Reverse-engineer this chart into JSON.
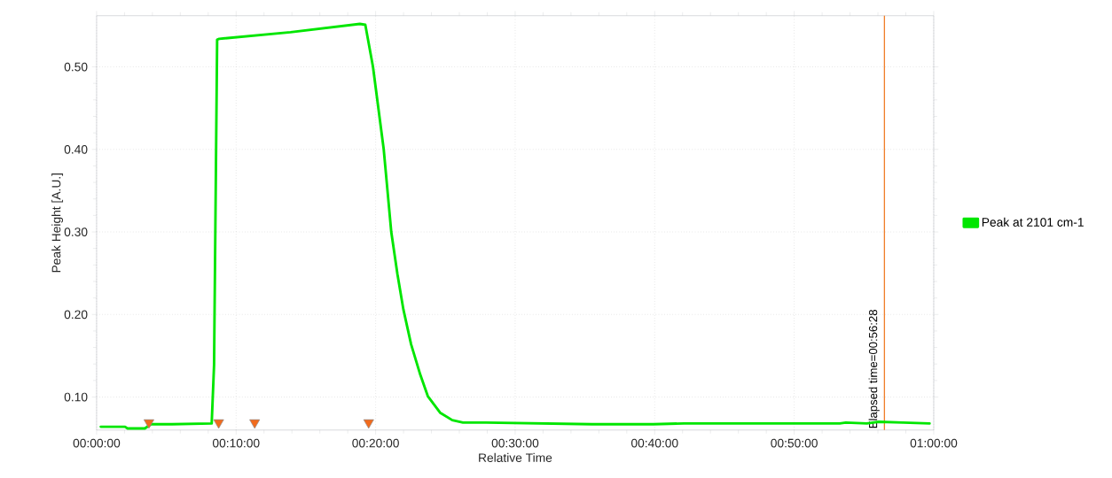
{
  "chart_data": {
    "type": "line",
    "xlabel": "Relative Time",
    "ylabel": "Peak Height [A.U.]",
    "xlim": [
      0,
      60
    ],
    "ylim": [
      0.06,
      0.562
    ],
    "xticks": [
      {
        "value": 0,
        "label": "00:00:00"
      },
      {
        "value": 10,
        "label": "00:10:00"
      },
      {
        "value": 20,
        "label": "00:20:00"
      },
      {
        "value": 30,
        "label": "00:30:00"
      },
      {
        "value": 40,
        "label": "00:40:00"
      },
      {
        "value": 50,
        "label": "00:50:00"
      },
      {
        "value": 60,
        "label": "01:00:00"
      }
    ],
    "yticks": [
      {
        "value": 0.1,
        "label": "0.10"
      },
      {
        "value": 0.2,
        "label": "0.20"
      },
      {
        "value": 0.3,
        "label": "0.30"
      },
      {
        "value": 0.4,
        "label": "0.40"
      },
      {
        "value": 0.5,
        "label": "0.50"
      }
    ],
    "grid": true,
    "legend": "right",
    "series": [
      {
        "name": "Peak at 2101 cm-1",
        "color": "#00e600",
        "x": [
          0.3,
          2.04,
          2.2,
          3.46,
          3.9,
          5.4,
          8.25,
          8.42,
          8.64,
          8.79,
          13.9,
          18.87,
          19.26,
          19.81,
          20.58,
          21.12,
          21.56,
          21.99,
          22.54,
          23.2,
          23.74,
          24.62,
          25.49,
          26.26,
          27.9,
          35.5,
          39.9,
          42.1,
          49.3,
          53.26,
          53.7,
          55.2,
          56.06,
          57.8,
          59.7
        ],
        "values": [
          0.064,
          0.064,
          0.062,
          0.062,
          0.067,
          0.067,
          0.068,
          0.139,
          0.533,
          0.534,
          0.542,
          0.552,
          0.551,
          0.5,
          0.4,
          0.3,
          0.249,
          0.206,
          0.164,
          0.127,
          0.101,
          0.081,
          0.072,
          0.069,
          0.069,
          0.067,
          0.067,
          0.068,
          0.068,
          0.068,
          0.069,
          0.068,
          0.07,
          0.069,
          0.068
        ]
      },
      {
        "type": "scatter",
        "marker": "triangle",
        "color": "#f26b1d",
        "x": [
          3.75,
          8.75,
          11.33,
          19.5
        ],
        "values": [
          0.069,
          0.069,
          0.069,
          0.069
        ]
      }
    ],
    "ref_lines": [
      {
        "axis": "x",
        "value": 56.467,
        "label": "Elapsed time=00:56:28",
        "color": "#f07f2a"
      }
    ]
  }
}
